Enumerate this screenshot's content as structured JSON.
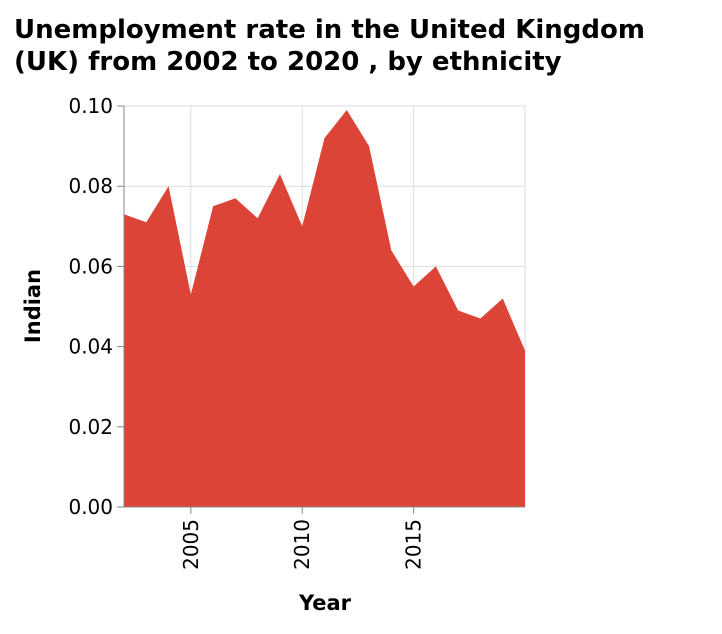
{
  "chart_data": {
    "type": "area",
    "title_lines": [
      "Unemployment rate in the United Kingdom",
      "(UK) from 2002 to 2020 , by ethnicity"
    ],
    "xlabel": "Year",
    "ylabel": "Indian",
    "xlim": [
      2002,
      2020
    ],
    "ylim": [
      0,
      0.1
    ],
    "x_ticks": [
      2005,
      2010,
      2015
    ],
    "x_tick_labels": [
      "2005",
      "2010",
      "2015"
    ],
    "y_ticks": [
      0,
      0.02,
      0.04,
      0.06,
      0.08,
      0.1
    ],
    "y_tick_labels": [
      "0.00",
      "0.02",
      "0.04",
      "0.06",
      "0.08",
      "0.10"
    ],
    "grid": true,
    "color": "#db4437",
    "series": [
      {
        "x": [
          2002,
          2003,
          2004,
          2005,
          2006,
          2007,
          2008,
          2009,
          2010,
          2011,
          2012,
          2013,
          2014,
          2015,
          2016,
          2017,
          2018,
          2019,
          2020
        ],
        "values": [
          0.073,
          0.071,
          0.08,
          0.053,
          0.075,
          0.077,
          0.072,
          0.083,
          0.07,
          0.092,
          0.099,
          0.09,
          0.064,
          0.055,
          0.06,
          0.049,
          0.047,
          0.052,
          0.039
        ]
      }
    ]
  }
}
